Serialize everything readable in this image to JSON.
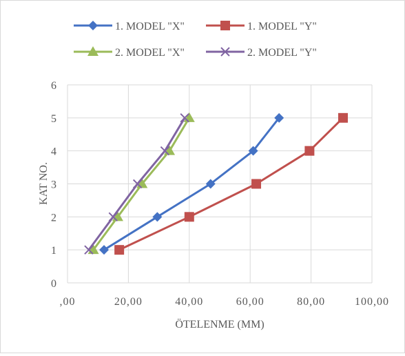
{
  "chart_data": {
    "type": "scatter",
    "xlabel": "ÖTELENME (MM)",
    "ylabel": "KAT NO.",
    "xlim": [
      0,
      100
    ],
    "ylim": [
      0,
      6
    ],
    "x_ticks": [
      ",00",
      "20,00",
      "40,00",
      "60,00",
      "80,00",
      "100,00"
    ],
    "y_ticks": [
      "0",
      "1",
      "2",
      "3",
      "4",
      "5",
      "6"
    ],
    "grid": "vertical and horizontal major gridlines",
    "legend_position": "top",
    "series": [
      {
        "name": "1. MODEL \"X\"",
        "color": "#4472c4",
        "marker": "diamond",
        "points": [
          [
            12,
            1
          ],
          [
            29.5,
            2
          ],
          [
            47,
            3
          ],
          [
            61,
            4
          ],
          [
            69.5,
            5
          ]
        ]
      },
      {
        "name": "1. MODEL \"Y\"",
        "color": "#c0504d",
        "marker": "square",
        "points": [
          [
            17,
            1
          ],
          [
            40,
            2
          ],
          [
            62,
            3
          ],
          [
            79.5,
            4
          ],
          [
            90.5,
            5
          ]
        ]
      },
      {
        "name": "2. MODEL \"X\"",
        "color": "#9bbb59",
        "marker": "triangle",
        "points": [
          [
            8.5,
            1
          ],
          [
            16.5,
            2
          ],
          [
            24.5,
            3
          ],
          [
            33.5,
            4
          ],
          [
            40,
            5
          ]
        ]
      },
      {
        "name": "2. MODEL \"Y\"",
        "color": "#8064a2",
        "marker": "x",
        "points": [
          [
            7,
            1
          ],
          [
            15,
            2
          ],
          [
            23,
            3
          ],
          [
            32,
            4
          ],
          [
            38.5,
            5
          ]
        ]
      }
    ]
  }
}
